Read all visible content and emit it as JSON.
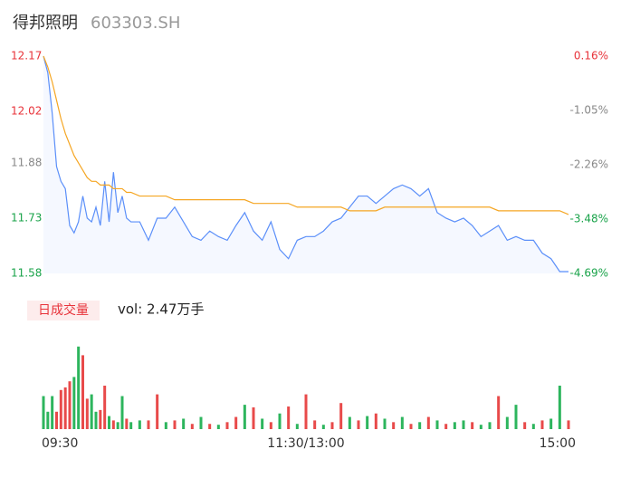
{
  "chart_data": {
    "type": "line",
    "title": "得邦照明",
    "subtitle": "603303.SH",
    "x": [
      0,
      2,
      4,
      6,
      8,
      10,
      12,
      14,
      16,
      18,
      20,
      22,
      24,
      26,
      28,
      30,
      32,
      34,
      36,
      38,
      40,
      44,
      48,
      52,
      56,
      60,
      64,
      68,
      72,
      76,
      80,
      84,
      88,
      92,
      96,
      100,
      104,
      108,
      112,
      116,
      120,
      124,
      128,
      132,
      136,
      140,
      144,
      148,
      152,
      156,
      160,
      164,
      168,
      172,
      176,
      180,
      184,
      188,
      192,
      196,
      200,
      204,
      208,
      212,
      216,
      220,
      224,
      228,
      232,
      236,
      240
    ],
    "xlim": [
      0,
      240
    ],
    "xticks": [
      {
        "value": 0,
        "label": "09:30"
      },
      {
        "value": 120,
        "label": "11:30/13:00"
      },
      {
        "value": 240,
        "label": "15:00"
      }
    ],
    "ylim": [
      11.58,
      12.17
    ],
    "yticks": [
      11.58,
      11.73,
      11.88,
      12.02,
      12.17
    ],
    "ytick_colors": [
      "#1aa34a",
      "#1aa34a",
      "#888888",
      "#e8333a",
      "#e8333a"
    ],
    "y2lim": [
      -4.69,
      0.16
    ],
    "y2ticks": [
      {
        "value": -4.69,
        "label": "-4.69%"
      },
      {
        "value": -3.48,
        "label": "-3.48%"
      },
      {
        "value": -2.26,
        "label": "-2.26%"
      },
      {
        "value": -1.05,
        "label": "-1.05%"
      },
      {
        "value": 0.16,
        "label": "0.16%"
      }
    ],
    "series": [
      {
        "color": "#5b8ff9",
        "values": [
          12.17,
          12.125,
          12.015,
          11.87,
          11.83,
          11.81,
          11.71,
          11.69,
          11.72,
          11.79,
          11.73,
          11.72,
          11.76,
          11.71,
          11.83,
          11.72,
          11.855,
          11.745,
          11.79,
          11.73,
          11.72,
          11.72,
          11.67,
          11.73,
          11.73,
          11.76,
          11.72,
          11.68,
          11.67,
          11.695,
          11.68,
          11.67,
          11.71,
          11.745,
          11.695,
          11.67,
          11.72,
          11.645,
          11.62,
          11.67,
          11.68,
          11.68,
          11.695,
          11.72,
          11.73,
          11.76,
          11.79,
          11.79,
          11.77,
          11.79,
          11.81,
          11.82,
          11.81,
          11.79,
          11.81,
          11.745,
          11.73,
          11.72,
          11.73,
          11.71,
          11.68,
          11.695,
          11.71,
          11.67,
          11.68,
          11.67,
          11.67,
          11.635,
          11.62,
          11.585,
          11.585
        ]
      },
      {
        "color": "#f5a623",
        "values": [
          12.17,
          12.14,
          12.1,
          12.05,
          12.0,
          11.96,
          11.93,
          11.9,
          11.88,
          11.86,
          11.84,
          11.83,
          11.83,
          11.82,
          11.82,
          11.82,
          11.81,
          11.81,
          11.81,
          11.8,
          11.8,
          11.79,
          11.79,
          11.79,
          11.79,
          11.78,
          11.78,
          11.78,
          11.78,
          11.78,
          11.78,
          11.78,
          11.78,
          11.78,
          11.77,
          11.77,
          11.77,
          11.77,
          11.77,
          11.76,
          11.76,
          11.76,
          11.76,
          11.76,
          11.76,
          11.75,
          11.75,
          11.75,
          11.75,
          11.76,
          11.76,
          11.76,
          11.76,
          11.76,
          11.76,
          11.76,
          11.76,
          11.76,
          11.76,
          11.76,
          11.76,
          11.76,
          11.75,
          11.75,
          11.75,
          11.75,
          11.75,
          11.75,
          11.75,
          11.75,
          11.74
        ]
      }
    ],
    "volume": {
      "title": "日成交量",
      "label": "vol: 2.47万手",
      "ylim": [
        0,
        100
      ],
      "values": [
        38,
        20,
        38,
        20,
        45,
        48,
        55,
        60,
        95,
        85,
        35,
        40,
        20,
        22,
        50,
        15,
        10,
        8,
        38,
        12,
        8,
        10,
        10,
        40,
        8,
        10,
        12,
        6,
        14,
        6,
        5,
        8,
        14,
        28,
        25,
        12,
        8,
        18,
        26,
        6,
        40,
        10,
        5,
        8,
        30,
        14,
        10,
        15,
        18,
        12,
        8,
        14,
        6,
        8,
        14,
        10,
        6,
        8,
        10,
        8,
        5,
        8,
        38,
        14,
        28,
        8,
        6,
        10,
        12,
        50,
        10
      ],
      "colors": [
        "#2db55d",
        "#2db55d",
        "#2db55d",
        "#e84a4a",
        "#e84a4a",
        "#e84a4a",
        "#e84a4a",
        "#2db55d",
        "#2db55d",
        "#e84a4a",
        "#e84a4a",
        "#2db55d",
        "#2db55d",
        "#e84a4a",
        "#e84a4a",
        "#2db55d",
        "#e84a4a",
        "#2db55d",
        "#2db55d",
        "#e84a4a",
        "#2db55d",
        "#2db55d",
        "#e84a4a",
        "#e84a4a",
        "#2db55d",
        "#e84a4a",
        "#2db55d",
        "#e84a4a",
        "#2db55d",
        "#e84a4a",
        "#2db55d",
        "#e84a4a",
        "#e84a4a",
        "#2db55d",
        "#e84a4a",
        "#2db55d",
        "#e84a4a",
        "#2db55d",
        "#e84a4a",
        "#2db55d",
        "#e84a4a",
        "#e84a4a",
        "#2db55d",
        "#e84a4a",
        "#e84a4a",
        "#2db55d",
        "#e84a4a",
        "#2db55d",
        "#e84a4a",
        "#2db55d",
        "#e84a4a",
        "#2db55d",
        "#e84a4a",
        "#2db55d",
        "#e84a4a",
        "#2db55d",
        "#e84a4a",
        "#2db55d",
        "#2db55d",
        "#e84a4a",
        "#2db55d",
        "#2db55d",
        "#e84a4a",
        "#2db55d",
        "#2db55d",
        "#e84a4a",
        "#2db55d",
        "#e84a4a",
        "#2db55d",
        "#2db55d",
        "#e84a4a"
      ]
    }
  }
}
